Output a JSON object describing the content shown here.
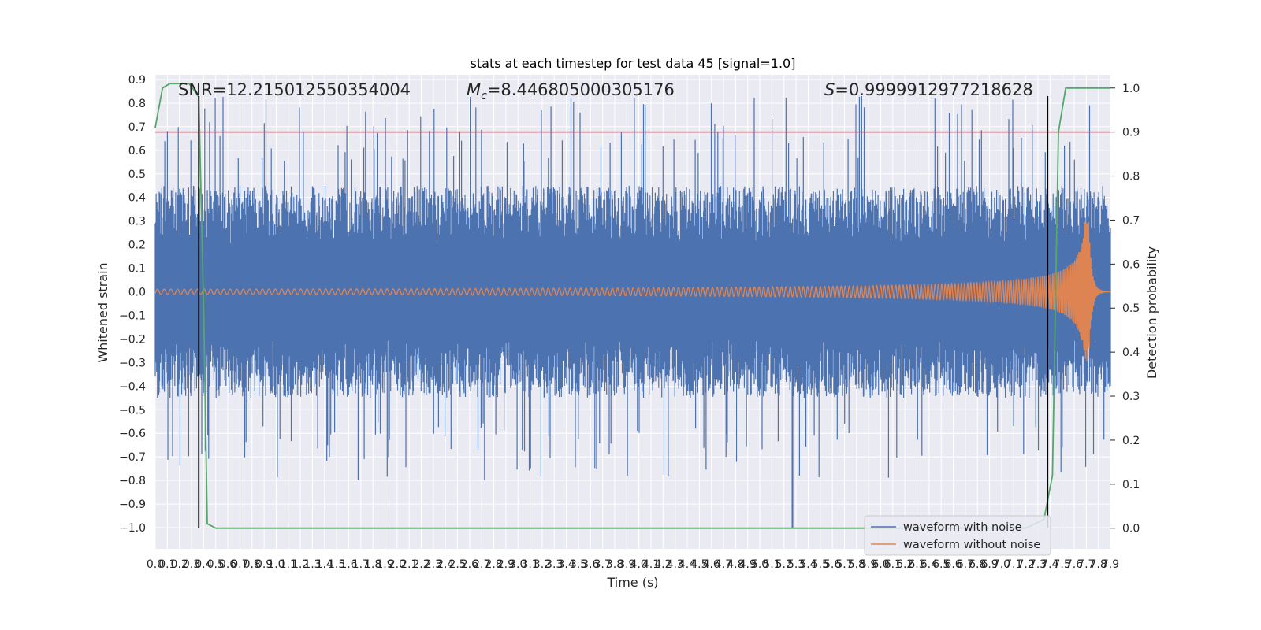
{
  "chart_data": {
    "type": "line",
    "title": "stats at each timestep for test data 45 [signal=1.0]",
    "xlabel": "Time (s)",
    "ylabel": "Whitened strain",
    "y2label": "Detection probability",
    "xlim": [
      0.0,
      7.9
    ],
    "ylim": [
      -1.09,
      0.92
    ],
    "y2lim": [
      -0.047,
      1.03
    ],
    "grid": true,
    "legend_position": "lower-right",
    "x_ticks": [
      "0.0",
      "0.1",
      "0.2",
      "0.3",
      "0.4",
      "0.5",
      "0.6",
      "0.7",
      "0.8",
      "0.9",
      "1.0",
      "1.1",
      "1.2",
      "1.3",
      "1.4",
      "1.5",
      "1.6",
      "1.7",
      "1.8",
      "1.9",
      "2.0",
      "2.1",
      "2.2",
      "2.3",
      "2.4",
      "2.5",
      "2.6",
      "2.7",
      "2.8",
      "2.9",
      "3.0",
      "3.1",
      "3.2",
      "3.3",
      "3.4",
      "3.5",
      "3.6",
      "3.7",
      "3.8",
      "3.9",
      "4.0",
      "4.1",
      "4.2",
      "4.3",
      "4.4",
      "4.5",
      "4.6",
      "4.7",
      "4.8",
      "4.9",
      "5.0",
      "5.1",
      "5.2",
      "5.3",
      "5.4",
      "5.5",
      "5.6",
      "5.7",
      "5.8",
      "5.9",
      "6.0",
      "6.1",
      "6.2",
      "6.3",
      "6.4",
      "6.5",
      "6.6",
      "6.7",
      "6.8",
      "6.9",
      "7.0",
      "7.1",
      "7.2",
      "7.3",
      "7.4",
      "7.5",
      "7.6",
      "7.7",
      "7.8",
      "7.9"
    ],
    "y_ticks": [
      "0.9",
      "0.8",
      "0.7",
      "0.6",
      "0.5",
      "0.4",
      "0.3",
      "0.2",
      "0.1",
      "0.0",
      "−0.1",
      "−0.2",
      "−0.3",
      "−0.4",
      "−0.5",
      "−0.6",
      "−0.7",
      "−0.8",
      "−0.9",
      "−1.0"
    ],
    "y_tick_values": [
      0.9,
      0.8,
      0.7,
      0.6,
      0.5,
      0.4,
      0.3,
      0.2,
      0.1,
      0.0,
      -0.1,
      -0.2,
      -0.3,
      -0.4,
      -0.5,
      -0.6,
      -0.7,
      -0.8,
      -0.9,
      -1.0
    ],
    "y2_ticks": [
      "1.0",
      "0.9",
      "0.8",
      "0.7",
      "0.6",
      "0.5",
      "0.4",
      "0.3",
      "0.2",
      "0.1",
      "0.0"
    ],
    "y2_tick_values": [
      1.0,
      0.9,
      0.8,
      0.7,
      0.6,
      0.5,
      0.4,
      0.3,
      0.2,
      0.1,
      0.0
    ],
    "annotations": {
      "snr": "SNR=12.215012550354004",
      "mc_symbol": "M",
      "mc_sub": "c",
      "mc_value": "=8.446805000305176",
      "s_symbol": "S",
      "s_value": "=0.9999912977218628"
    },
    "series": [
      {
        "name": "waveform with noise",
        "color": "#4c72b0",
        "envelope_typical": 0.4,
        "extreme_max": 0.83,
        "extreme_min": -1.0
      },
      {
        "name": "waveform without noise",
        "color": "#dd8452",
        "x_merger": 7.72,
        "peak_amplitude": 0.3
      },
      {
        "color": "#55a868",
        "axis": "right",
        "x": [
          0.0,
          0.06,
          0.12,
          0.28,
          0.36,
          0.4,
          0.43,
          0.5,
          1.5,
          7.2,
          7.35,
          7.42,
          7.47,
          7.53,
          7.9
        ],
        "y": [
          0.91,
          1.0,
          1.01,
          1.01,
          0.98,
          0.5,
          0.01,
          0.0,
          0.0,
          0.0,
          0.02,
          0.12,
          0.9,
          1.0,
          1.0
        ]
      }
    ],
    "threshold_line": {
      "axis": "right",
      "y": 0.9,
      "color": "#c44e52"
    },
    "vertical_markers": {
      "x": [
        0.36,
        7.38
      ],
      "y_range": [
        -1.0,
        0.83
      ],
      "color": "#000000"
    }
  }
}
